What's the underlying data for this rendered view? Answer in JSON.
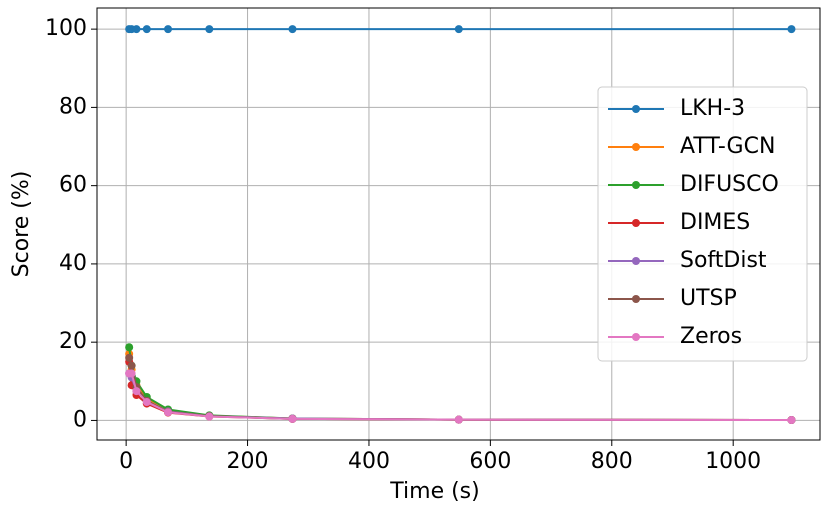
{
  "chart_data": {
    "type": "line",
    "x_label": "Time (s)",
    "y_label": "Score (%)",
    "x": [
      5,
      9,
      17,
      34,
      69,
      137,
      274,
      548,
      1096
    ],
    "series": [
      {
        "name": "LKH-3",
        "color": "#1f77b4",
        "values": [
          100,
          100,
          100,
          100,
          100,
          100,
          100,
          100,
          100
        ]
      },
      {
        "name": "ATT-GCN",
        "color": "#ff7f0e",
        "values": [
          17,
          13,
          9,
          5.5,
          2.5,
          1.2,
          0.5,
          0.2,
          0.1
        ]
      },
      {
        "name": "DIFUSCO",
        "color": "#2ca02c",
        "values": [
          18.7,
          14,
          10,
          6,
          2.8,
          1.3,
          0.5,
          0.2,
          0.1
        ]
      },
      {
        "name": "DIMES",
        "color": "#d62728",
        "values": [
          15,
          9,
          6.5,
          4.3,
          2,
          1,
          0.4,
          0.2,
          0.1
        ]
      },
      {
        "name": "SoftDist",
        "color": "#9467bd",
        "values": [
          12,
          11,
          7.5,
          5,
          2.3,
          1.1,
          0.5,
          0.2,
          0.1
        ]
      },
      {
        "name": "UTSP",
        "color": "#8c564b",
        "values": [
          16,
          14,
          8.5,
          5,
          2.2,
          1.1,
          0.4,
          0.2,
          0.1
        ]
      },
      {
        "name": "Zeros",
        "color": "#e377c2",
        "values": [
          12,
          12,
          7.5,
          4.7,
          2.1,
          1,
          0.4,
          0.2,
          0.1
        ]
      }
    ],
    "xlim": [
      -48,
      1143
    ],
    "ylim": [
      -5,
      105.4
    ],
    "xticks": [
      0,
      200,
      400,
      600,
      800,
      1000
    ],
    "yticks": [
      0,
      20,
      40,
      60,
      80,
      100
    ],
    "grid": true,
    "legend": "center right"
  }
}
